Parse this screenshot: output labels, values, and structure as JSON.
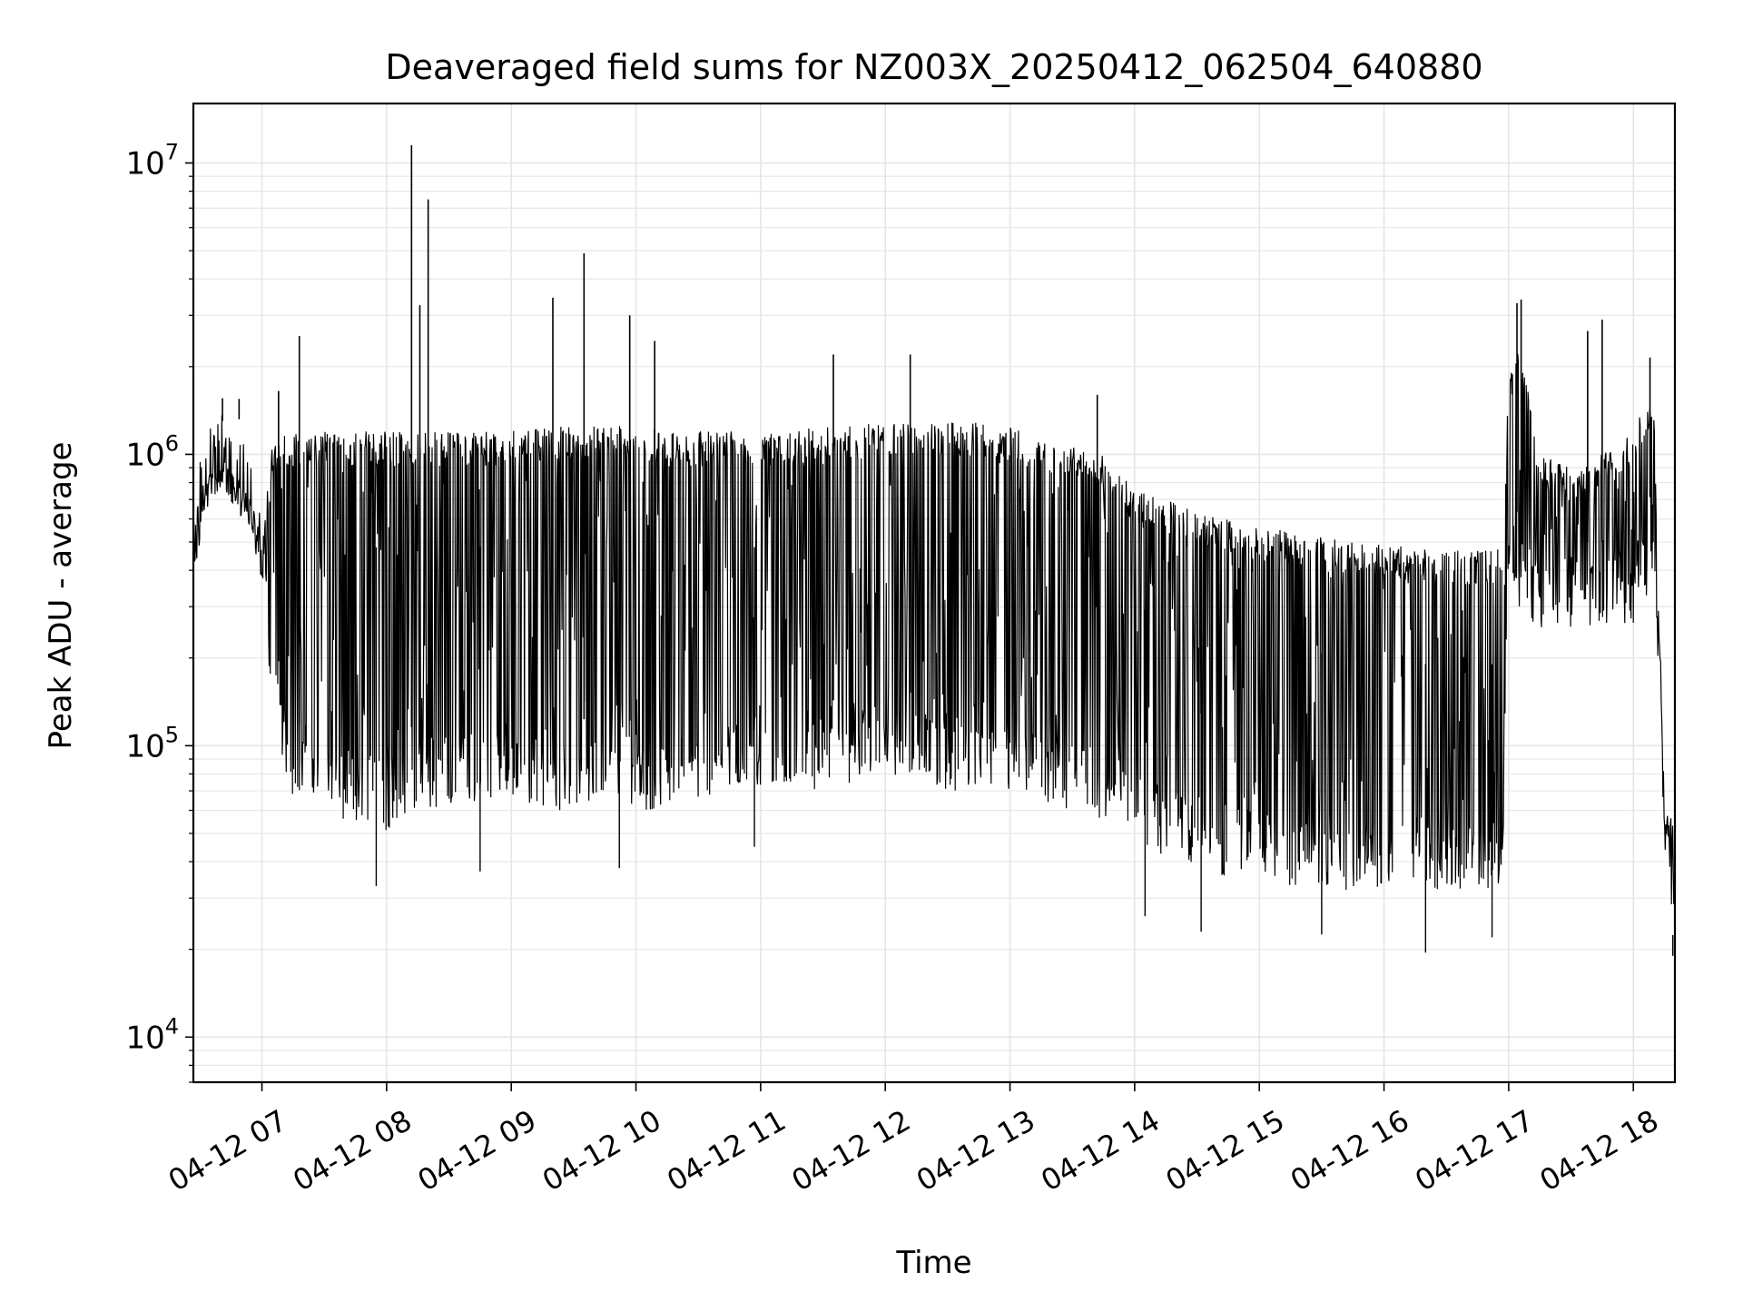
{
  "chart_data": {
    "type": "line",
    "title": "Deaveraged field sums for NZ003X_20250412_062504_640880",
    "xlabel": "Time",
    "ylabel": "Peak ADU - average",
    "yscale": "log",
    "ylim": [
      7000,
      16000000
    ],
    "xlim": [
      "2025-04-12T06:27:00",
      "2025-04-12T18:20:00"
    ],
    "grid": true,
    "line_color": "#000000",
    "grid_color": "#e6e6e6",
    "x_ticks": [
      {
        "time": "2025-04-12T07:00:00",
        "label": "04-12 07"
      },
      {
        "time": "2025-04-12T08:00:00",
        "label": "04-12 08"
      },
      {
        "time": "2025-04-12T09:00:00",
        "label": "04-12 09"
      },
      {
        "time": "2025-04-12T10:00:00",
        "label": "04-12 10"
      },
      {
        "time": "2025-04-12T11:00:00",
        "label": "04-12 11"
      },
      {
        "time": "2025-04-12T12:00:00",
        "label": "04-12 12"
      },
      {
        "time": "2025-04-12T13:00:00",
        "label": "04-12 13"
      },
      {
        "time": "2025-04-12T14:00:00",
        "label": "04-12 14"
      },
      {
        "time": "2025-04-12T15:00:00",
        "label": "04-12 15"
      },
      {
        "time": "2025-04-12T16:00:00",
        "label": "04-12 16"
      },
      {
        "time": "2025-04-12T17:00:00",
        "label": "04-12 17"
      },
      {
        "time": "2025-04-12T18:00:00",
        "label": "04-12 18"
      }
    ],
    "y_ticks": [
      {
        "value": 10000,
        "base": "10",
        "exp": "4"
      },
      {
        "value": 100000,
        "base": "10",
        "exp": "5"
      },
      {
        "value": 1000000,
        "base": "10",
        "exp": "6"
      },
      {
        "value": 10000000,
        "base": "10",
        "exp": "7"
      }
    ],
    "series": [
      {
        "x": [
          "2025-04-12T06:27:00",
          "2025-04-12T06:30:00",
          "2025-04-12T06:35:00",
          "2025-04-12T06:40:00",
          "2025-04-12T06:45:00",
          "2025-04-12T06:50:00",
          "2025-04-12T06:55:00",
          "2025-04-12T07:00:00",
          "2025-04-12T07:05:00",
          "2025-04-12T07:15:00",
          "2025-04-12T07:30:00",
          "2025-04-12T07:45:00",
          "2025-04-12T08:00:00",
          "2025-04-12T08:15:00",
          "2025-04-12T08:30:00",
          "2025-04-12T08:45:00",
          "2025-04-12T09:00:00",
          "2025-04-12T09:15:00",
          "2025-04-12T09:30:00",
          "2025-04-12T09:45:00",
          "2025-04-12T10:00:00",
          "2025-04-12T10:15:00",
          "2025-04-12T10:30:00",
          "2025-04-12T10:45:00",
          "2025-04-12T11:00:00",
          "2025-04-12T11:15:00",
          "2025-04-12T11:30:00",
          "2025-04-12T11:45:00",
          "2025-04-12T12:00:00",
          "2025-04-12T12:15:00",
          "2025-04-12T12:30:00",
          "2025-04-12T12:45:00",
          "2025-04-12T13:00:00",
          "2025-04-12T13:15:00",
          "2025-04-12T13:30:00",
          "2025-04-12T13:45:00",
          "2025-04-12T14:00:00",
          "2025-04-12T14:15:00",
          "2025-04-12T14:30:00",
          "2025-04-12T14:45:00",
          "2025-04-12T15:00:00",
          "2025-04-12T15:15:00",
          "2025-04-12T15:30:00",
          "2025-04-12T15:45:00",
          "2025-04-12T16:00:00",
          "2025-04-12T16:15:00",
          "2025-04-12T16:30:00",
          "2025-04-12T16:45:00",
          "2025-04-12T16:57:00",
          "2025-04-12T17:00:00",
          "2025-04-12T17:05:00",
          "2025-04-12T17:15:00",
          "2025-04-12T17:30:00",
          "2025-04-12T17:45:00",
          "2025-04-12T18:00:00",
          "2025-04-12T18:05:00",
          "2025-04-12T18:10:00",
          "2025-04-12T18:15:00",
          "2025-04-12T18:20:00"
        ],
        "upper": [
          500000,
          600000,
          900000,
          1000000,
          900000,
          800000,
          700000,
          500000,
          1100000,
          1200000,
          1200000,
          1200000,
          1200000,
          1200000,
          1200000,
          1200000,
          1200000,
          1250000,
          1250000,
          1250000,
          1250000,
          1200000,
          1200000,
          1200000,
          1200000,
          1200000,
          1250000,
          1250000,
          1300000,
          1300000,
          1300000,
          1300000,
          1250000,
          1150000,
          1100000,
          1000000,
          750000,
          700000,
          650000,
          600000,
          570000,
          540000,
          520000,
          500000,
          490000,
          480000,
          470000,
          470000,
          480000,
          1800000,
          2500000,
          1000000,
          900000,
          1000000,
          1200000,
          1500000,
          1500000,
          60000,
          55000
        ],
        "lower": [
          450000,
          550000,
          750000,
          800000,
          700000,
          650000,
          500000,
          350000,
          120000,
          60000,
          55000,
          55000,
          50000,
          60000,
          60000,
          65000,
          65000,
          60000,
          60000,
          65000,
          60000,
          60000,
          65000,
          70000,
          70000,
          70000,
          70000,
          75000,
          80000,
          75000,
          70000,
          70000,
          70000,
          65000,
          60000,
          55000,
          45000,
          40000,
          38000,
          35000,
          33000,
          32000,
          32000,
          32000,
          32000,
          32000,
          32000,
          32000,
          30000,
          400000,
          300000,
          250000,
          250000,
          250000,
          250000,
          300000,
          400000,
          45000,
          20000
        ],
        "spikes": [
          {
            "time": "2025-04-12T06:41:00",
            "value": 1300000
          },
          {
            "time": "2025-04-12T06:49:00",
            "value": 1550000
          },
          {
            "time": "2025-04-12T07:08:00",
            "value": 1650000
          },
          {
            "time": "2025-04-12T07:18:00",
            "value": 2550000
          },
          {
            "time": "2025-04-12T08:12:00",
            "value": 11500000
          },
          {
            "time": "2025-04-12T08:16:00",
            "value": 3250000
          },
          {
            "time": "2025-04-12T08:20:00",
            "value": 7500000
          },
          {
            "time": "2025-04-12T09:20:00",
            "value": 3450000
          },
          {
            "time": "2025-04-12T09:35:00",
            "value": 4900000
          },
          {
            "time": "2025-04-12T09:57:00",
            "value": 3000000
          },
          {
            "time": "2025-04-12T10:09:00",
            "value": 2450000
          },
          {
            "time": "2025-04-12T11:35:00",
            "value": 2200000
          },
          {
            "time": "2025-04-12T12:12:00",
            "value": 2200000
          },
          {
            "time": "2025-04-12T13:42:00",
            "value": 1600000
          },
          {
            "time": "2025-04-12T17:04:00",
            "value": 3300000
          },
          {
            "time": "2025-04-12T17:06:00",
            "value": 3400000
          },
          {
            "time": "2025-04-12T17:38:00",
            "value": 2650000
          },
          {
            "time": "2025-04-12T17:45:00",
            "value": 2900000
          },
          {
            "time": "2025-04-12T18:08:00",
            "value": 2150000
          }
        ],
        "dips": [
          {
            "time": "2025-04-12T07:55:00",
            "value": 33000
          },
          {
            "time": "2025-04-12T08:45:00",
            "value": 37000
          },
          {
            "time": "2025-04-12T09:52:00",
            "value": 38000
          },
          {
            "time": "2025-04-12T10:57:00",
            "value": 45000
          },
          {
            "time": "2025-04-12T14:05:00",
            "value": 26000
          },
          {
            "time": "2025-04-12T14:32:00",
            "value": 23000
          },
          {
            "time": "2025-04-12T15:30:00",
            "value": 22500
          },
          {
            "time": "2025-04-12T16:20:00",
            "value": 19500
          },
          {
            "time": "2025-04-12T16:52:00",
            "value": 22000
          },
          {
            "time": "2025-04-12T18:19:00",
            "value": 19000
          }
        ]
      }
    ]
  }
}
